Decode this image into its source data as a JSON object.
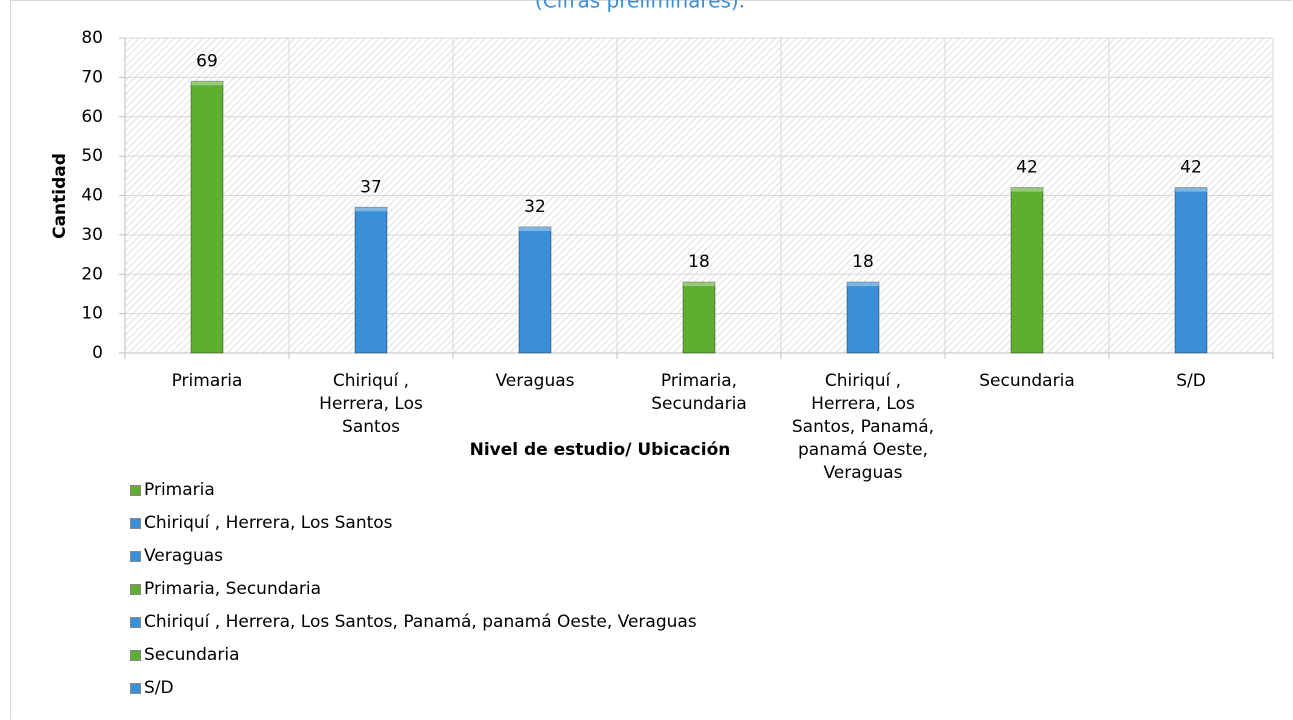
{
  "chart_data": {
    "type": "bar",
    "subtitle": "(Cifras preliminares).",
    "y_label": "Cantidad",
    "x_label": "Nivel de estudio/ Ubicación",
    "categories": [
      "Primaria",
      "Chiriquí , Herrera, Los Santos",
      "Veraguas",
      "Primaria, Secundaria",
      "Chiriquí , Herrera, Los Santos, Panamá, panamá Oeste, Veraguas",
      "Secundaria",
      "S/D"
    ],
    "values": [
      69,
      37,
      32,
      18,
      18,
      42,
      42
    ],
    "colors": [
      "#5fae32",
      "#3a8fd8",
      "#3a8fd8",
      "#5fae32",
      "#3a8fd8",
      "#5fae32",
      "#3a8fd8"
    ],
    "ylim": [
      0,
      80
    ],
    "yticks": [
      0,
      10,
      20,
      30,
      40,
      50,
      60,
      70,
      80
    ],
    "grid": true,
    "legend": "bottom-left"
  }
}
